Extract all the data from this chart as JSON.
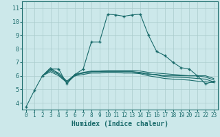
{
  "title": "",
  "xlabel": "Humidex (Indice chaleur)",
  "bg_color": "#cce8ea",
  "grid_color": "#aacccc",
  "line_color": "#1a6b6b",
  "xlim": [
    -0.5,
    23.5
  ],
  "ylim": [
    3.5,
    11.5
  ],
  "xticks": [
    0,
    1,
    2,
    3,
    4,
    5,
    6,
    7,
    8,
    9,
    10,
    11,
    12,
    13,
    14,
    15,
    16,
    17,
    18,
    19,
    20,
    21,
    22,
    23
  ],
  "yticks": [
    4,
    5,
    6,
    7,
    8,
    9,
    10,
    11
  ],
  "lines": [
    {
      "x": [
        0,
        1,
        2,
        3,
        4,
        5,
        6,
        7,
        8,
        9,
        10,
        11,
        12,
        13,
        14,
        15,
        16,
        17,
        18,
        19,
        20,
        21,
        22,
        23
      ],
      "y": [
        3.7,
        4.9,
        6.0,
        6.5,
        6.5,
        5.4,
        6.1,
        6.5,
        8.5,
        8.5,
        10.55,
        10.5,
        10.4,
        10.5,
        10.55,
        9.0,
        7.8,
        7.5,
        7.0,
        6.6,
        6.5,
        6.0,
        5.4,
        5.6
      ],
      "marker": "+"
    },
    {
      "x": [
        2,
        3,
        4,
        5,
        6,
        7,
        8,
        9,
        10,
        11,
        12,
        13,
        14,
        15,
        16,
        17,
        18,
        19,
        20,
        21,
        22,
        23
      ],
      "y": [
        6.0,
        6.6,
        6.1,
        5.5,
        6.1,
        6.2,
        6.3,
        6.3,
        6.3,
        6.3,
        6.3,
        6.3,
        6.2,
        6.1,
        6.1,
        6.0,
        6.0,
        6.0,
        6.0,
        6.0,
        5.9,
        5.7
      ],
      "marker": null
    },
    {
      "x": [
        2,
        3,
        4,
        5,
        6,
        7,
        8,
        9,
        10,
        11,
        12,
        13,
        14,
        15,
        16,
        17,
        18,
        19,
        20,
        21,
        22,
        23
      ],
      "y": [
        6.0,
        6.5,
        6.2,
        5.6,
        6.1,
        6.25,
        6.35,
        6.35,
        6.4,
        6.4,
        6.4,
        6.4,
        6.35,
        6.25,
        6.2,
        6.15,
        6.1,
        6.05,
        6.0,
        6.0,
        6.0,
        5.8
      ],
      "marker": null
    },
    {
      "x": [
        2,
        3,
        4,
        5,
        6,
        7,
        8,
        9,
        10,
        11,
        12,
        13,
        14,
        15,
        16,
        17,
        18,
        19,
        20,
        21,
        22,
        23
      ],
      "y": [
        6.0,
        6.4,
        6.1,
        5.6,
        6.05,
        6.2,
        6.3,
        6.3,
        6.3,
        6.3,
        6.3,
        6.3,
        6.25,
        6.15,
        6.05,
        5.95,
        5.9,
        5.88,
        5.85,
        5.8,
        5.75,
        5.55
      ],
      "marker": null
    },
    {
      "x": [
        2,
        3,
        4,
        5,
        6,
        7,
        8,
        9,
        10,
        11,
        12,
        13,
        14,
        15,
        16,
        17,
        18,
        19,
        20,
        21,
        22,
        23
      ],
      "y": [
        6.0,
        6.3,
        6.0,
        5.5,
        6.0,
        6.1,
        6.2,
        6.2,
        6.25,
        6.25,
        6.2,
        6.2,
        6.15,
        6.0,
        5.9,
        5.8,
        5.75,
        5.72,
        5.68,
        5.6,
        5.55,
        5.5
      ],
      "marker": null
    }
  ]
}
